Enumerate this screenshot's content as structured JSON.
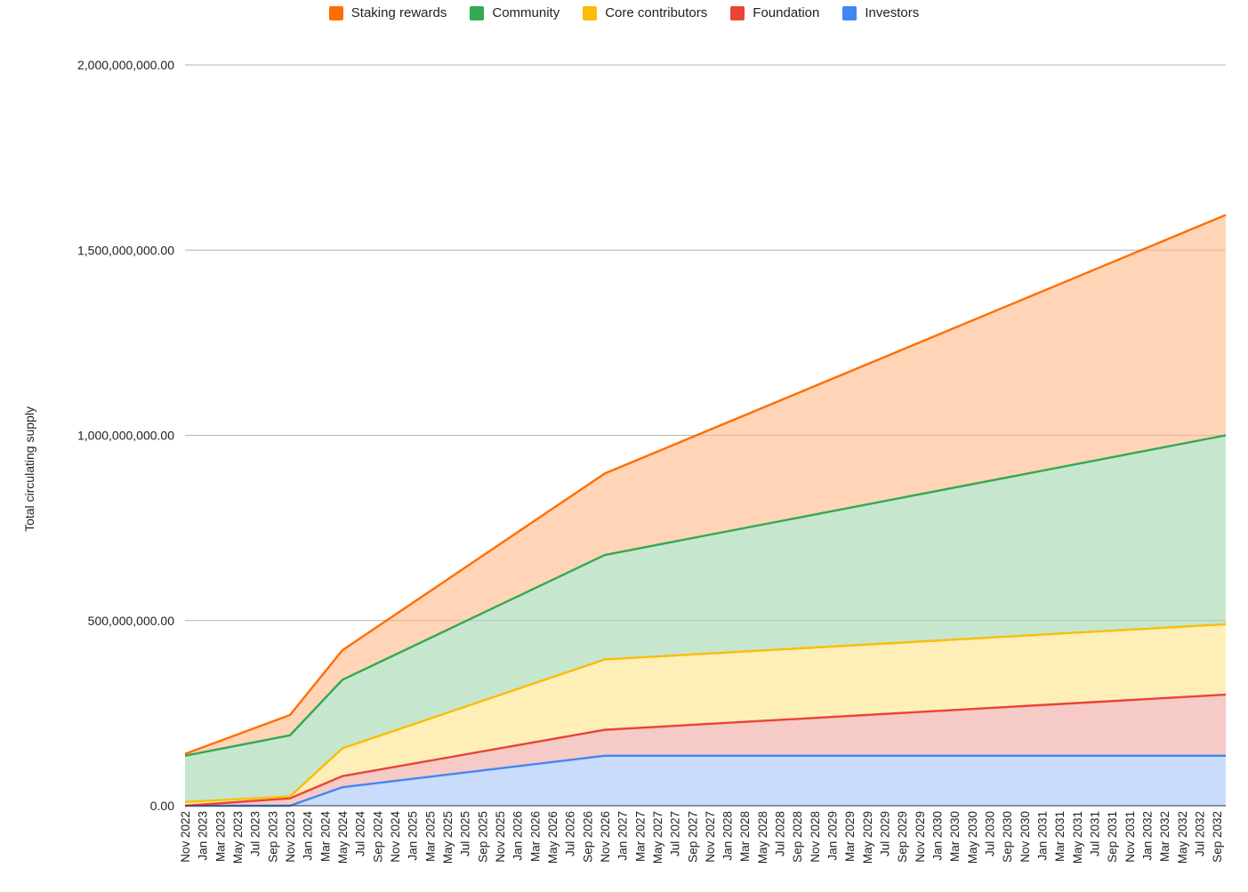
{
  "chart_data": {
    "type": "area",
    "stacked": true,
    "title": "",
    "xlabel": "",
    "ylabel": "Total circulating supply",
    "ylim": [
      0,
      2000000000
    ],
    "yticks": [
      {
        "value": 0,
        "label": "0.00"
      },
      {
        "value": 500000000,
        "label": "500,000,000.00"
      },
      {
        "value": 1000000000,
        "label": "1,000,000,000.00"
      },
      {
        "value": 1500000000,
        "label": "1,500,000,000.00"
      },
      {
        "value": 2000000000,
        "label": "2,000,000,000.00"
      }
    ],
    "grid": true,
    "legend_position": "top",
    "x_tick_labels": [
      "Nov 2022",
      "Jan 2023",
      "Mar 2023",
      "May 2023",
      "Jul 2023",
      "Sep 2023",
      "Nov 2023",
      "Jan 2024",
      "Mar 2024",
      "May 2024",
      "Jul 2024",
      "Sep 2024",
      "Nov 2024",
      "Jan 2025",
      "Mar 2025",
      "May 2025",
      "Jul 2025",
      "Sep 2025",
      "Nov 2025",
      "Jan 2026",
      "Mar 2026",
      "May 2026",
      "Jul 2026",
      "Sep 2026",
      "Nov 2026",
      "Jan 2027",
      "Mar 2027",
      "May 2027",
      "Jul 2027",
      "Sep 2027",
      "Nov 2027",
      "Jan 2028",
      "Mar 2028",
      "May 2028",
      "Jul 2028",
      "Sep 2028",
      "Nov 2028",
      "Jan 2029",
      "Mar 2029",
      "May 2029",
      "Jul 2029",
      "Sep 2029",
      "Nov 2029",
      "Jan 2030",
      "Mar 2030",
      "May 2030",
      "Jul 2030",
      "Sep 2030",
      "Nov 2030",
      "Jan 2031",
      "Mar 2031",
      "May 2031",
      "Jul 2031",
      "Sep 2031",
      "Nov 2031",
      "Jan 2032",
      "Mar 2032",
      "May 2032",
      "Jul 2032",
      "Sep 2032"
    ],
    "x_points": [
      "Nov 2022",
      "Nov 2023",
      "May 2024",
      "Nov 2026",
      "Oct 2032"
    ],
    "series": [
      {
        "name": "Investors",
        "color": "#4285f4",
        "fill": "#c6dafc",
        "values": [
          0,
          0,
          50000000,
          135000000,
          135000000
        ]
      },
      {
        "name": "Foundation",
        "color": "#ea4335",
        "fill": "#f6c7c3",
        "values": [
          0,
          20000000,
          30000000,
          70000000,
          165000000
        ]
      },
      {
        "name": "Core contributors",
        "color": "#fbbc04",
        "fill": "#feeeb5",
        "values": [
          10000000,
          5000000,
          75000000,
          190000000,
          190000000
        ]
      },
      {
        "name": "Community",
        "color": "#34a853",
        "fill": "#c3e6cb",
        "values": [
          125000000,
          165000000,
          185000000,
          282000000,
          510000000
        ]
      },
      {
        "name": "Staking rewards",
        "color": "#ff6d01",
        "fill": "#ffd2b3",
        "values": [
          5000000,
          55000000,
          80000000,
          220000000,
          595000000
        ]
      }
    ],
    "legend_order": [
      "Staking rewards",
      "Community",
      "Core contributors",
      "Foundation",
      "Investors"
    ]
  }
}
